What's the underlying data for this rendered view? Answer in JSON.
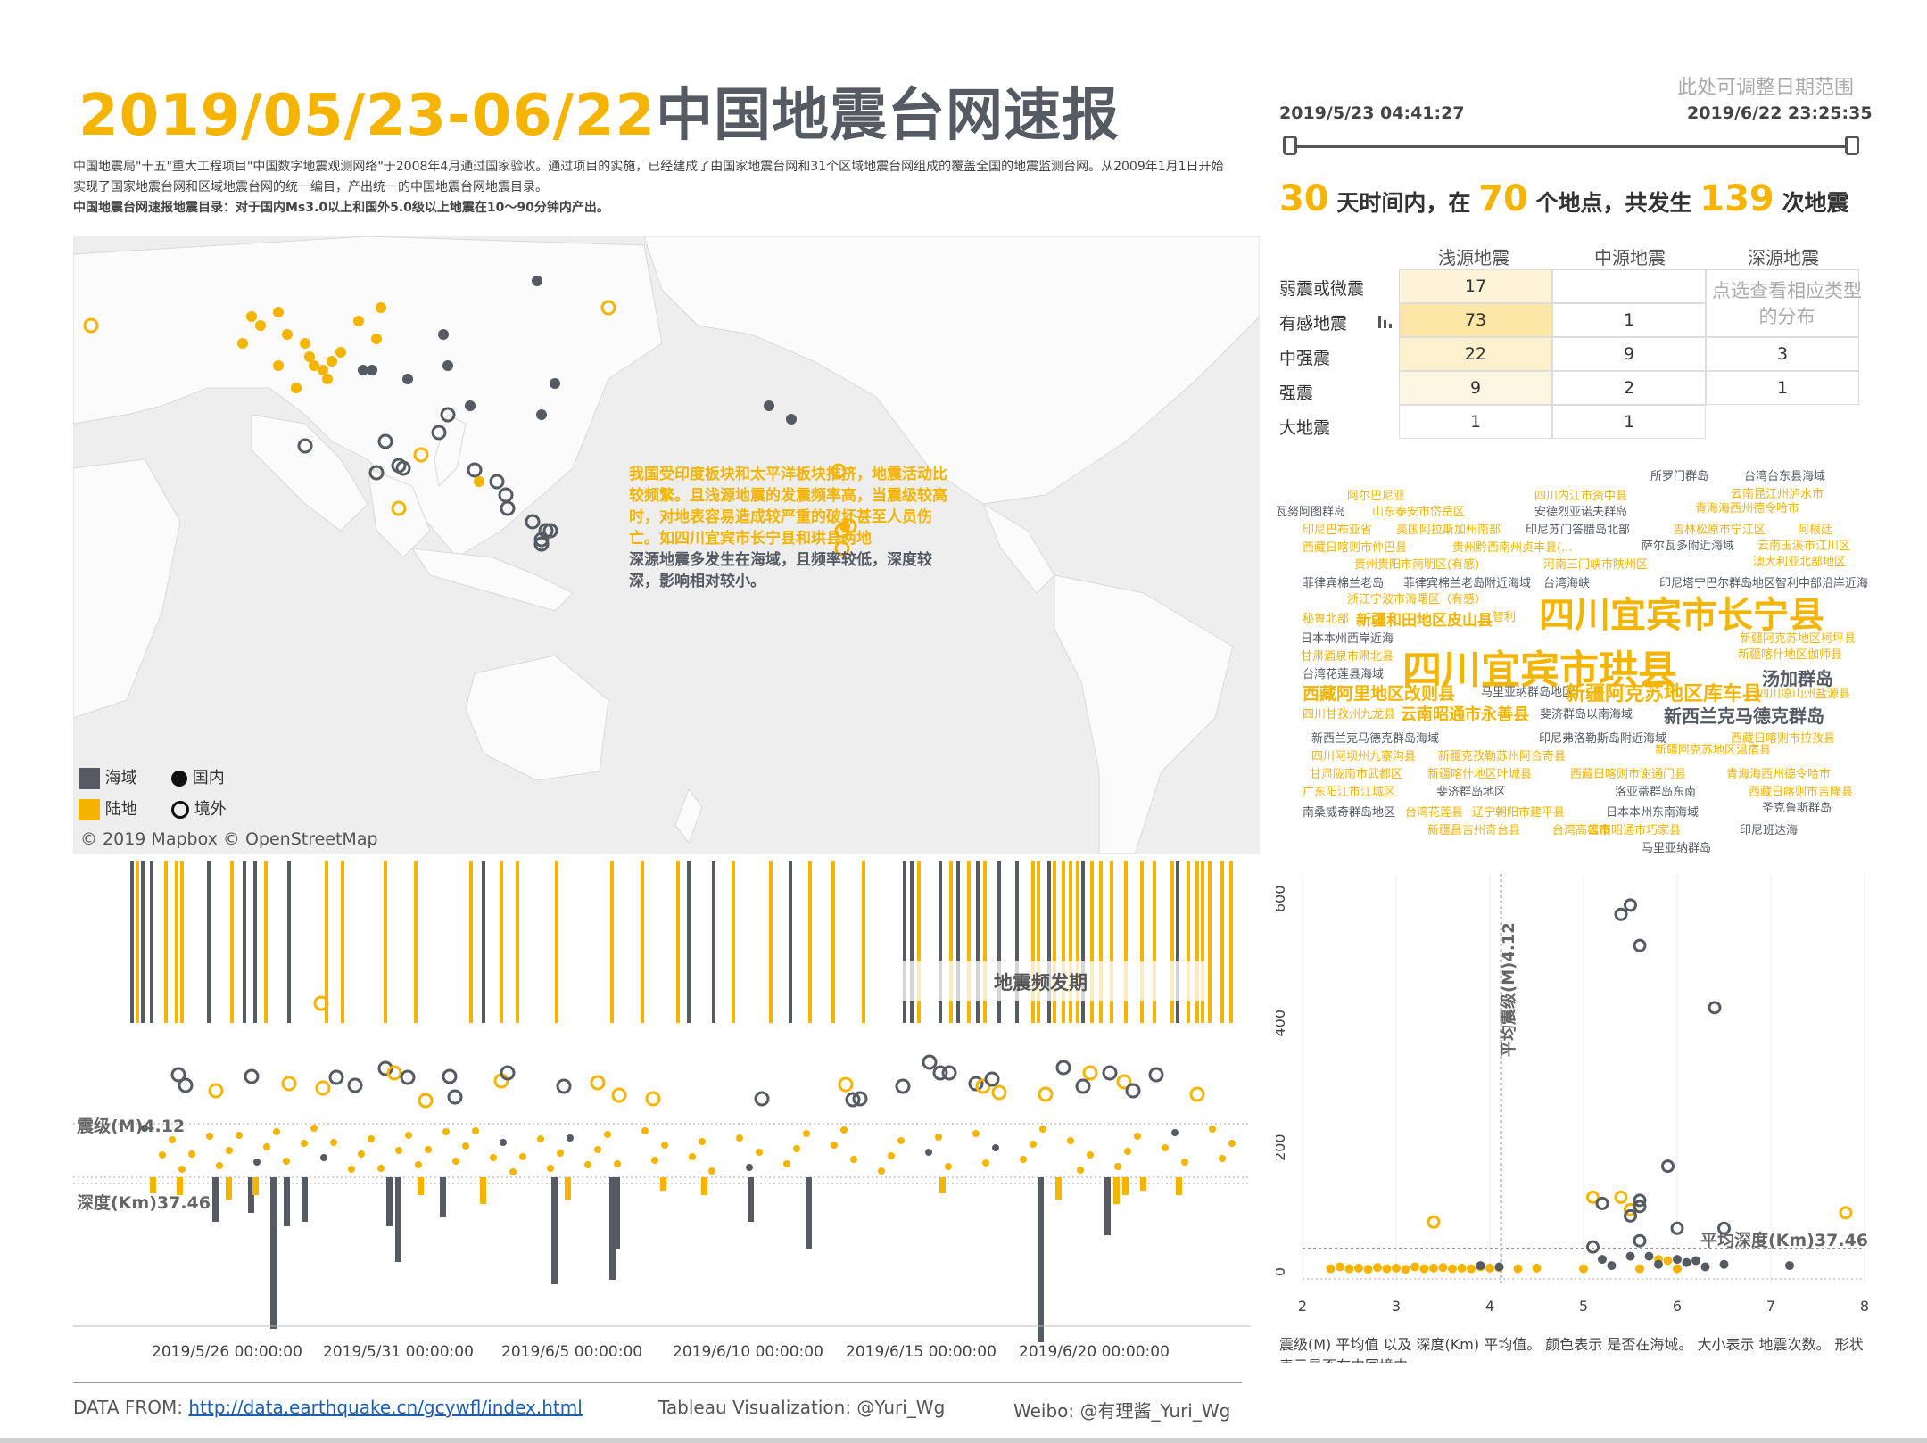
{
  "header": {
    "title_date": "2019/05/23-06/22",
    "title_main": "中国地震台网速报",
    "desc_1": "中国地震局\"十五\"重大工程项目\"中国数字地震观测网络\"于2008年4月通过国家验收。通过项目的实施，已经建成了由国家地震台网和31个区域地震台网组成的覆盖全国的地震监测台网。从2009年1月1日开始实现了国家地震台网和区域地震台网的统一编目，产出统一的中国地震台网地震目录。",
    "desc_2": "中国地震台网速报地震目录：对于国内Ms3.0以上和国外5.0级以上地震在10～90分钟内产出。"
  },
  "filter": {
    "hint": "此处可调整日期范围",
    "start": "2019/5/23 04:41:27",
    "end": "2019/6/22 23:25:35"
  },
  "summary": {
    "days": "30",
    "days_text": "天时间内，在",
    "places": "70",
    "places_text": "个地点，共发生",
    "count": "139",
    "count_text": "次地震"
  },
  "matrix": {
    "columns": [
      "浅源地震",
      "中源地震",
      "深源地震"
    ],
    "rows": [
      {
        "label": "弱震或微震",
        "values": [
          "17",
          "",
          ""
        ]
      },
      {
        "label": "有感地震",
        "values": [
          "73",
          "1",
          ""
        ]
      },
      {
        "label": "中强震",
        "values": [
          "22",
          "9",
          "3"
        ]
      },
      {
        "label": "强震",
        "values": [
          "9",
          "2",
          "1"
        ]
      },
      {
        "label": "大地震",
        "values": [
          "1",
          "1",
          ""
        ]
      }
    ],
    "note": "点选查看相应类型的分布"
  },
  "map": {
    "note_yellow": "我国受印度板块和太平洋板块推挤，地震活动比较频繁。且浅源地震的发震频率高，当震级较高时，对地表容易造成较严重的破坏甚至人员伤亡。如四川宜宾市长宁县和珙县两地",
    "note_grey": "深源地震多发生在海域，且频率较低，深度较深，影响相对较小。",
    "legend_sea": "海域",
    "legend_land": "陆地",
    "legend_domestic": "国内",
    "legend_abroad": "境外",
    "copyright": "© 2019 Mapbox  © OpenStreetMap",
    "colors": {
      "land": "#f5b400",
      "sea": "#555a63"
    }
  },
  "timeline": {
    "period_label": "地震频发期",
    "ref_mag": "震级(M)4.12",
    "ref_depth": "深度(Km)37.46",
    "x_ticks": [
      "2019/5/26 00:00:00",
      "2019/5/31 00:00:00",
      "2019/6/5 00:00:00",
      "2019/6/10 00:00:00",
      "2019/6/15 00:00:00",
      "2019/6/20 00:00:00"
    ]
  },
  "wordcloud": [
    {
      "t": "所罗门群岛",
      "c": "g"
    },
    {
      "t": "台湾台东县海域",
      "c": "g"
    },
    {
      "t": "阿尔巴尼亚",
      "c": "y"
    },
    {
      "t": "四川内江市资中县",
      "c": "y"
    },
    {
      "t": "云南昆江州泸水市",
      "c": "y"
    },
    {
      "t": "瓦努阿图群岛",
      "c": "g"
    },
    {
      "t": "山东泰安市岱岳区",
      "c": "y"
    },
    {
      "t": "安德烈亚诺夫群岛",
      "c": "g"
    },
    {
      "t": "青海海西州德令哈市",
      "c": "y"
    },
    {
      "t": "印尼巴布亚省",
      "c": "y"
    },
    {
      "t": "美国阿拉斯加州南部",
      "c": "y"
    },
    {
      "t": "印尼苏门答腊岛北部",
      "c": "g"
    },
    {
      "t": "吉林松原市宁江区",
      "c": "y"
    },
    {
      "t": "阿根廷",
      "c": "y"
    },
    {
      "t": "西藏日喀则市仲巴县",
      "c": "y"
    },
    {
      "t": "贵州黔西南州贞丰县(...",
      "c": "y"
    },
    {
      "t": "萨尔瓦多附近海域",
      "c": "g"
    },
    {
      "t": "云南玉溪市江川区",
      "c": "y"
    },
    {
      "t": "贵州贵阳市南明区(有感)",
      "c": "y"
    },
    {
      "t": "河南三门峡市陕州区",
      "c": "y"
    },
    {
      "t": "澳大利亚北部地区",
      "c": "y"
    },
    {
      "t": "菲律宾棉兰老岛",
      "c": "g"
    },
    {
      "t": "菲律宾棉兰老岛附近海域",
      "c": "g"
    },
    {
      "t": "台湾海峡",
      "c": "g"
    },
    {
      "t": "印尼塔宁巴尔群岛地区",
      "c": "g"
    },
    {
      "t": "智利中部沿岸近海",
      "c": "g"
    },
    {
      "t": "浙江宁波市海曙区（有感）",
      "c": "y"
    },
    {
      "t": "秘鲁北部",
      "c": "y"
    },
    {
      "t": "新疆和田地区皮山县",
      "c": "y"
    },
    {
      "t": "智利",
      "c": "y"
    },
    {
      "t": "四川宜宾市长宁县",
      "c": "y"
    },
    {
      "t": "日本本州西岸近海",
      "c": "g"
    },
    {
      "t": "新疆阿克苏地区柯坪县",
      "c": "y"
    },
    {
      "t": "甘肃酒泉市肃北县",
      "c": "y"
    },
    {
      "t": "四川宜宾市珙县",
      "c": "y"
    },
    {
      "t": "新疆喀什地区伽师县",
      "c": "y"
    },
    {
      "t": "台湾花莲县海域",
      "c": "g"
    },
    {
      "t": "汤加群岛",
      "c": "g"
    },
    {
      "t": "西藏阿里地区改则县",
      "c": "y"
    },
    {
      "t": "马里亚纳群岛地区",
      "c": "g"
    },
    {
      "t": "新疆阿克苏地区库车县",
      "c": "y"
    },
    {
      "t": "四川凉山州盐源县",
      "c": "y"
    },
    {
      "t": "四川甘孜州九龙县",
      "c": "y"
    },
    {
      "t": "云南昭通市永善县",
      "c": "y"
    },
    {
      "t": "斐济群岛以南海域",
      "c": "g"
    },
    {
      "t": "新西兰克马德克群岛",
      "c": "g"
    },
    {
      "t": "新西兰克马德克群岛海域",
      "c": "g"
    },
    {
      "t": "印尼弗洛勒斯岛附近海域",
      "c": "g"
    },
    {
      "t": "西藏日喀则市拉孜县",
      "c": "y"
    },
    {
      "t": "四川阿坝州九寨沟县",
      "c": "y"
    },
    {
      "t": "新疆克孜勒苏州阿合奇县",
      "c": "y"
    },
    {
      "t": "新疆阿克苏地区温宿县",
      "c": "y"
    },
    {
      "t": "甘肃陇南市武都区",
      "c": "y"
    },
    {
      "t": "新疆喀什地区叶城县",
      "c": "y"
    },
    {
      "t": "西藏日喀则市谢通门县",
      "c": "y"
    },
    {
      "t": "青海海西州德令哈市",
      "c": "y"
    },
    {
      "t": "广东阳江市江城区",
      "c": "y"
    },
    {
      "t": "斐济群岛地区",
      "c": "g"
    },
    {
      "t": "洛亚蒂群岛东南",
      "c": "g"
    },
    {
      "t": "西藏日喀则市吉隆县",
      "c": "y"
    },
    {
      "t": "南桑威奇群岛地区",
      "c": "g"
    },
    {
      "t": "辽宁朝阳市建平县",
      "c": "y"
    },
    {
      "t": "台湾花莲县",
      "c": "y"
    },
    {
      "t": "日本本州东南海域",
      "c": "g"
    },
    {
      "t": "圣克鲁斯群岛",
      "c": "g"
    },
    {
      "t": "新疆昌吉州奇台县",
      "c": "y"
    },
    {
      "t": "台湾高雄市",
      "c": "y"
    },
    {
      "t": "印尼班达海",
      "c": "g"
    },
    {
      "t": "云南昭通市巧家县",
      "c": "y"
    },
    {
      "t": "马里亚纳群岛",
      "c": "g"
    }
  ],
  "scatter": {
    "ref_mag": "平均震级(M)4.12",
    "ref_depth": "平均深度(Km)37.46",
    "caption": "震级(M) 平均值 以及 深度(Km) 平均值。 颜色表示 是否在海域。 大小表示 地震次数。 形状表示是否在中国境内。",
    "x_ticks": [
      "2",
      "3",
      "4",
      "5",
      "6",
      "7",
      "8"
    ],
    "y_ticks": [
      "0",
      "200",
      "400",
      "600"
    ]
  },
  "chart_data": [
    {
      "type": "scatter",
      "title": "",
      "xlabel": "震级(M) 平均值",
      "ylabel": "深度(Km) 平均值",
      "xlim": [
        2,
        8
      ],
      "ylim": [
        -20,
        640
      ],
      "ref_lines": {
        "x": 4.12,
        "y": 37.46
      },
      "series": [
        {
          "name": "陆地",
          "points": [
            [
              2.3,
              5
            ],
            [
              2.4,
              8
            ],
            [
              2.5,
              5
            ],
            [
              2.6,
              6
            ],
            [
              2.7,
              4
            ],
            [
              2.8,
              7
            ],
            [
              2.9,
              5
            ],
            [
              3.0,
              6
            ],
            [
              3.1,
              4
            ],
            [
              3.2,
              8
            ],
            [
              3.3,
              5
            ],
            [
              3.4,
              6
            ],
            [
              3.5,
              7
            ],
            [
              3.6,
              5
            ],
            [
              3.7,
              6
            ],
            [
              3.8,
              5
            ],
            [
              3.9,
              8
            ],
            [
              4.0,
              6
            ],
            [
              4.1,
              7
            ],
            [
              4.3,
              5
            ],
            [
              4.5,
              6
            ],
            [
              3.4,
              80
            ],
            [
              5.0,
              5
            ],
            [
              5.1,
              120
            ],
            [
              5.4,
              120
            ],
            [
              5.5,
              100
            ],
            [
              5.6,
              5
            ],
            [
              5.8,
              20
            ],
            [
              5.9,
              18
            ],
            [
              6.0,
              5
            ],
            [
              7.8,
              95
            ]
          ]
        },
        {
          "name": "海域",
          "points": [
            [
              3.9,
              10
            ],
            [
              4.1,
              8
            ],
            [
              5.1,
              40
            ],
            [
              5.2,
              20
            ],
            [
              5.2,
              110
            ],
            [
              5.3,
              10
            ],
            [
              5.4,
              575
            ],
            [
              5.5,
              25
            ],
            [
              5.5,
              590
            ],
            [
              5.5,
              90
            ],
            [
              5.6,
              115
            ],
            [
              5.6,
              525
            ],
            [
              5.6,
              50
            ],
            [
              5.6,
              105
            ],
            [
              5.7,
              25
            ],
            [
              5.8,
              12
            ],
            [
              5.9,
              170
            ],
            [
              6.0,
              70
            ],
            [
              6.0,
              20
            ],
            [
              6.1,
              15
            ],
            [
              6.2,
              18
            ],
            [
              6.3,
              8
            ],
            [
              6.4,
              425
            ],
            [
              6.5,
              12
            ],
            [
              6.5,
              70
            ],
            [
              7.2,
              10
            ]
          ]
        }
      ]
    }
  ]
}
